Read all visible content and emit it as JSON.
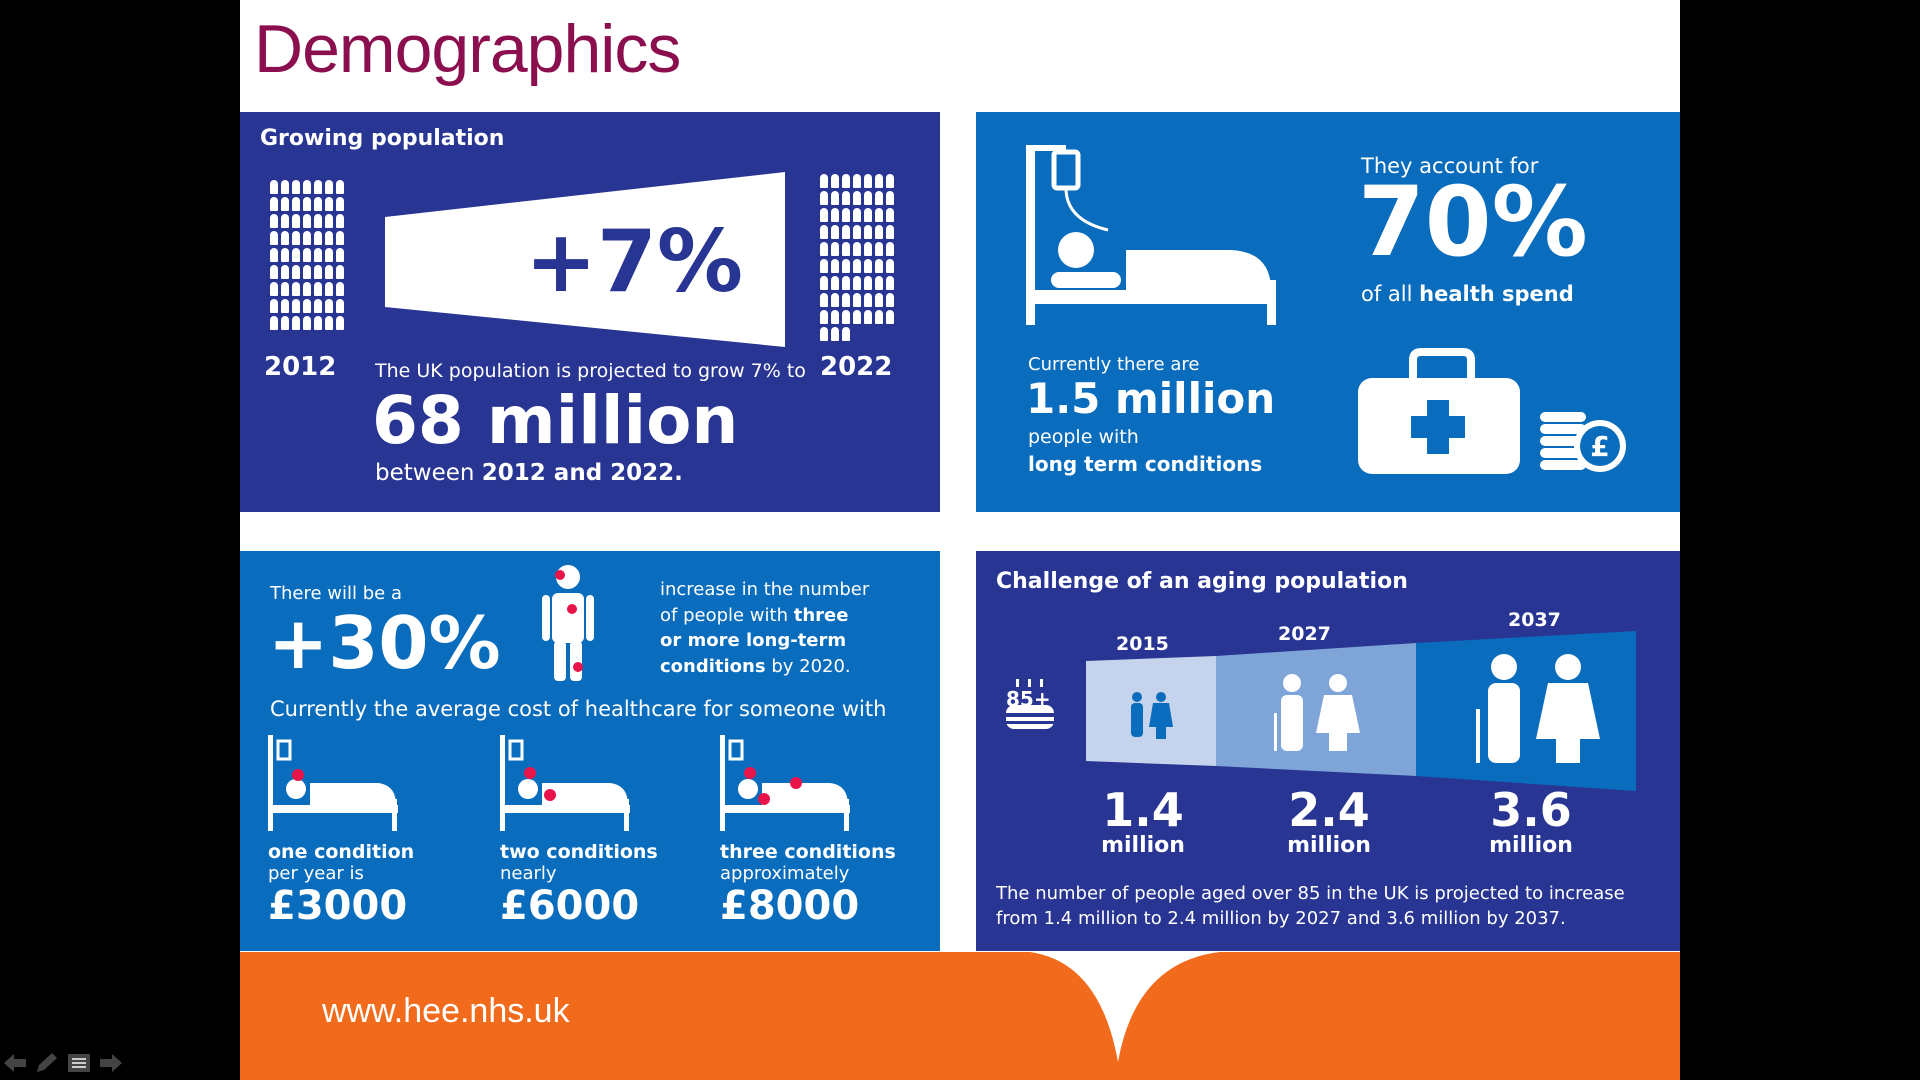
{
  "slide": {
    "title": "Demographics",
    "footer_url": "www.hee.nhs.uk"
  },
  "colors": {
    "title": "#8b0f4f",
    "navy_panel": "#283593",
    "blue_panel": "#0a6cbc",
    "footer": "#f26a1b",
    "accent_red": "#e8144a"
  },
  "growing_population": {
    "heading": "Growing population",
    "percent": "+7%",
    "year_start": "2012",
    "year_end": "2022",
    "intro": "The UK population is projected to grow 7% to",
    "big_number": "68 million",
    "between": "between",
    "between_bold": "2012 and 2022."
  },
  "long_term_conditions": {
    "currently": "Currently there are",
    "big_number": "1.5 million",
    "people_with": "people with",
    "conditions_bold": "long term conditions",
    "account_for": "They account for",
    "percent": "70%",
    "of_all": "of all",
    "health_spend": "health spend",
    "pound_icon_symbol": "£"
  },
  "conditions_cost": {
    "there_will_be": "There will be a",
    "percent": "+30%",
    "increase_line1": "increase in the number",
    "increase_line2": "of people with",
    "three_bold": "three",
    "or_more_bold": "or more long-term",
    "conditions_bold": "conditions",
    "by_year": "by 2020.",
    "average_cost": "Currently the average cost of healthcare for someone with",
    "items": [
      {
        "label": "one condition",
        "qualifier": "per year is",
        "cost": "£3000"
      },
      {
        "label": "two conditions",
        "qualifier": "nearly",
        "cost": "£6000"
      },
      {
        "label": "three conditions",
        "qualifier": "approximately",
        "cost": "£8000"
      }
    ]
  },
  "aging_population": {
    "heading": "Challenge of an aging population",
    "age_badge": "85+",
    "years": [
      "2015",
      "2027",
      "2037"
    ],
    "values": [
      {
        "number": "1.4",
        "unit": "million"
      },
      {
        "number": "2.4",
        "unit": "million"
      },
      {
        "number": "3.6",
        "unit": "million"
      }
    ],
    "footnote_line1": "The number of people aged over 85 in the UK is projected to increase",
    "footnote_line2": "from 1.4 million to 2.4 million by 2027 and 3.6 million by 2037."
  },
  "nav": {
    "icons": [
      "back-arrow-icon",
      "pen-icon",
      "menu-icon",
      "forward-arrow-icon"
    ]
  }
}
